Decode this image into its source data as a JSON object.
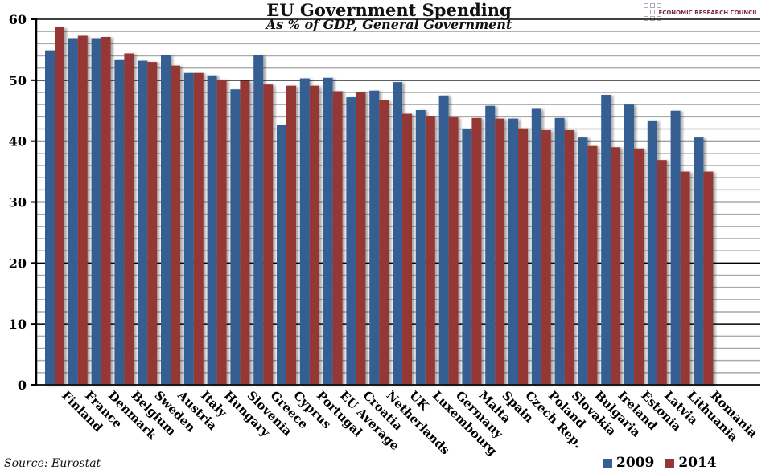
{
  "chart_data": {
    "type": "bar",
    "title": "EU Government Spending",
    "subtitle": "As % of GDP, General Government",
    "source": "Source: Eurostat",
    "logo_text": "ECONOMIC RESEARCH COUNCIL",
    "categories": [
      "Finland",
      "France",
      "Denmark",
      "Belgium",
      "Sweden",
      "Austria",
      "Italy",
      "Hungary",
      "Slovenia",
      "Greece",
      "Cyprus",
      "Portugal",
      "EU Average",
      "Croatia",
      "Netherlands",
      "UK",
      "Luxembourg",
      "Germany",
      "Malta",
      "Spain",
      "Czech Rep.",
      "Poland",
      "Slovakia",
      "Bulgaria",
      "Ireland",
      "Estonia",
      "Latvia",
      "Lithuania",
      "Romania"
    ],
    "series": [
      {
        "name": "2009",
        "color": "#365f92",
        "values": [
          54.9,
          56.9,
          56.9,
          53.3,
          53.2,
          54.1,
          51.2,
          50.8,
          48.5,
          54.1,
          42.6,
          50.3,
          50.4,
          47.2,
          48.3,
          49.7,
          45.1,
          47.5,
          42.0,
          45.8,
          43.7,
          45.3,
          43.8,
          40.6,
          47.6,
          46.0,
          43.4,
          45.0,
          40.6
        ]
      },
      {
        "name": "2014",
        "color": "#953735",
        "values": [
          58.7,
          57.3,
          57.1,
          54.4,
          53.0,
          52.4,
          51.2,
          50.1,
          49.9,
          49.3,
          49.1,
          49.1,
          48.2,
          48.1,
          46.7,
          44.5,
          44.1,
          43.9,
          43.8,
          43.7,
          42.1,
          41.8,
          41.8,
          39.2,
          39.0,
          38.8,
          36.9,
          35.0,
          35.0
        ]
      }
    ],
    "ylim": [
      0,
      60
    ],
    "yticks": [
      "0",
      "10",
      "20",
      "30",
      "40",
      "50",
      "60"
    ],
    "minor_grid_step": 2,
    "grid": true,
    "legend_placement": "bottom-right"
  }
}
